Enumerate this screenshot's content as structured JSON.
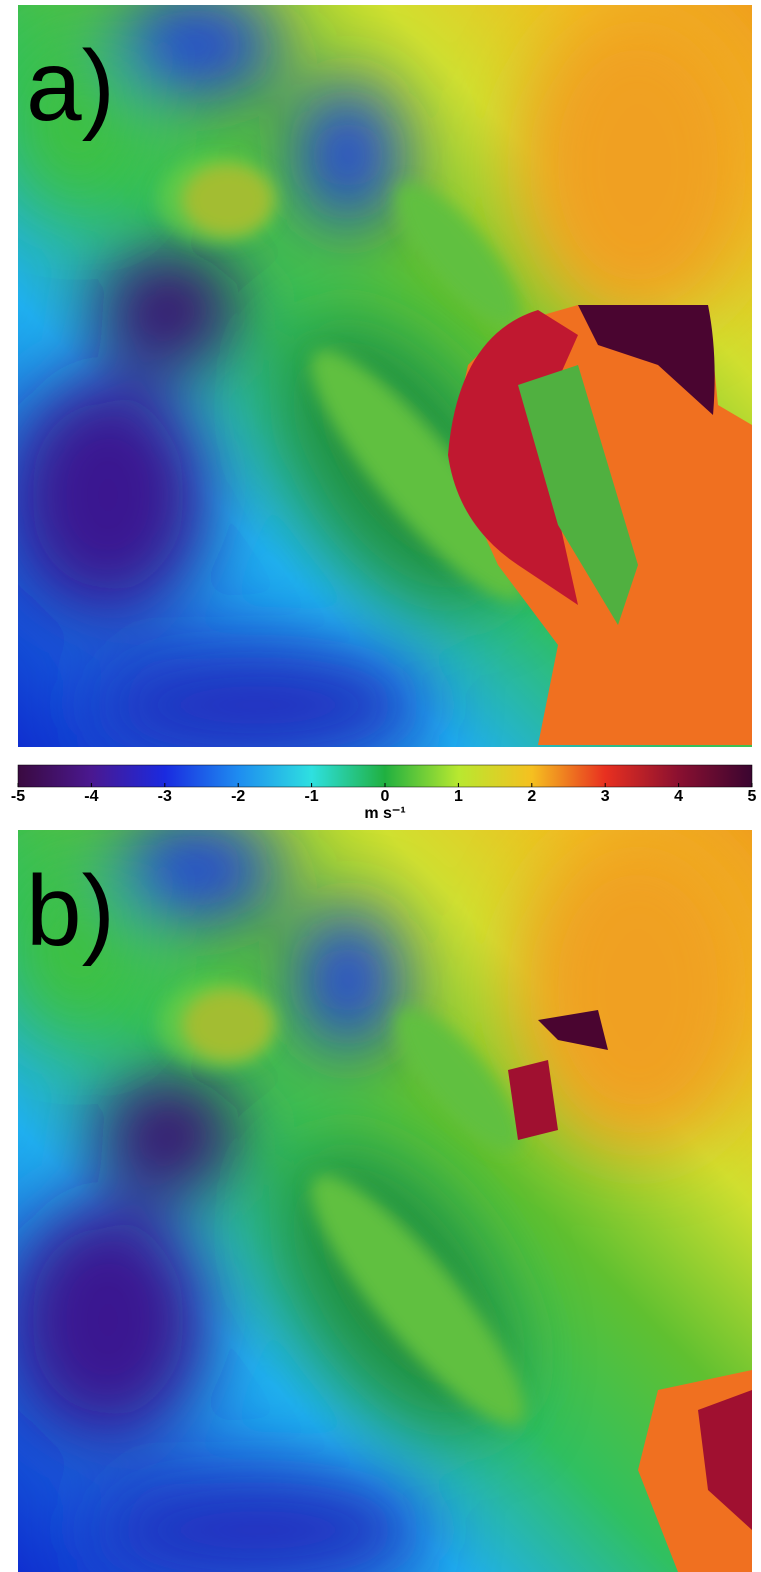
{
  "chart_data": {
    "type": "heatmap",
    "panels": [
      {
        "label": "a)"
      },
      {
        "label": "b)"
      }
    ],
    "colorbar": {
      "label": "m s⁻¹",
      "clim": [
        -5,
        5
      ],
      "ticks": [
        -5,
        -4,
        -3,
        -2,
        -1,
        0,
        1,
        2,
        3,
        4,
        5
      ],
      "colormap": [
        "#3a0a40",
        "#4a1890",
        "#1a2ae0",
        "#1e8cf0",
        "#2ee0e0",
        "#20b040",
        "#b8e830",
        "#f5c020",
        "#e83020",
        "#8a1030",
        "#3a0530"
      ]
    }
  }
}
